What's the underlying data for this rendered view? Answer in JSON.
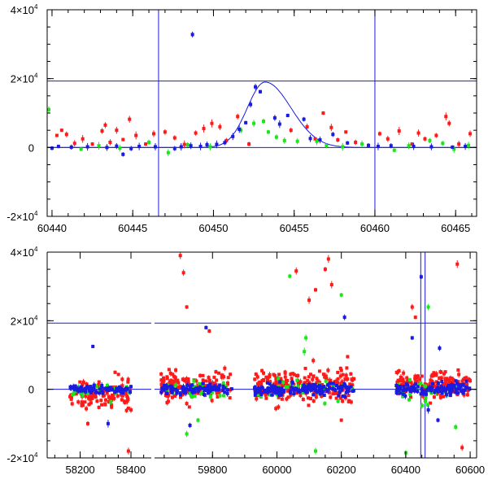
{
  "chart_data": [
    {
      "type": "scatter",
      "title": "",
      "xlabel": "",
      "ylabel": "",
      "xlim": [
        60439.7,
        60466.3
      ],
      "ylim": [
        -20000,
        40000
      ],
      "x_ticks": [
        {
          "value": 60440,
          "label": "60440"
        },
        {
          "value": 60445,
          "label": "60445"
        },
        {
          "value": 60450,
          "label": "60450"
        },
        {
          "value": 60455,
          "label": "60455"
        },
        {
          "value": 60460,
          "label": "60460"
        },
        {
          "value": 60465,
          "label": "60465"
        }
      ],
      "y_ticks": [
        {
          "value": 40000,
          "mant": "4×10",
          "exp": "4"
        },
        {
          "value": 20000,
          "mant": "2×10",
          "exp": "4"
        },
        {
          "value": 0,
          "mant": "0",
          "exp": ""
        },
        {
          "value": -20000,
          "mant": "-2×10",
          "exp": "4"
        }
      ],
      "hlines": [
        0,
        19300
      ],
      "vlines": [
        60446.6,
        60460.0
      ],
      "model_curve": {
        "baseline": 0,
        "peak": 19000,
        "t0": 60453.2,
        "sigma_left": 1.1,
        "sigma_right": 1.6
      },
      "series": [
        {
          "name": "red",
          "color": "#ff1a1a",
          "points": [
            [
              60440.3,
              3500
            ],
            [
              60440.6,
              5000
            ],
            [
              60440.9,
              3800
            ],
            [
              60441.4,
              1200
            ],
            [
              60441.9,
              2500
            ],
            [
              60442.5,
              1000
            ],
            [
              60443.1,
              4800
            ],
            [
              60443.3,
              6500
            ],
            [
              60443.6,
              1500
            ],
            [
              60444.0,
              5000
            ],
            [
              60444.4,
              2300
            ],
            [
              60444.8,
              8200
            ],
            [
              60445.2,
              3500
            ],
            [
              60445.8,
              1000
            ],
            [
              60446.3,
              4000
            ],
            [
              60447.0,
              4500
            ],
            [
              60447.6,
              2800
            ],
            [
              60448.2,
              900
            ],
            [
              60448.9,
              4200
            ],
            [
              60449.4,
              5500
            ],
            [
              60449.9,
              7000
            ],
            [
              60450.4,
              6000
            ],
            [
              60450.8,
              2000
            ],
            [
              60451.5,
              9000
            ],
            [
              60452.2,
              1000
            ],
            [
              60454.8,
              5000
            ],
            [
              60455.8,
              6000
            ],
            [
              60456.3,
              2500
            ],
            [
              60456.8,
              10000
            ],
            [
              60457.3,
              5800
            ],
            [
              60457.7,
              2200
            ],
            [
              60458.2,
              4500
            ],
            [
              60458.8,
              1500
            ],
            [
              60460.3,
              4000
            ],
            [
              60460.8,
              2500
            ],
            [
              60461.5,
              4800
            ],
            [
              60462.3,
              1000
            ],
            [
              60462.7,
              4200
            ],
            [
              60463.1,
              2500
            ],
            [
              60463.8,
              3500
            ],
            [
              60464.4,
              9000
            ],
            [
              60464.6,
              7000
            ],
            [
              60465.2,
              1000
            ],
            [
              60465.9,
              4000
            ]
          ]
        },
        {
          "name": "green",
          "color": "#1ae61a",
          "points": [
            [
              60439.8,
              11000
            ],
            [
              60441.8,
              -500
            ],
            [
              60442.9,
              500
            ],
            [
              60444.2,
              -200
            ],
            [
              60446.0,
              1500
            ],
            [
              60447.2,
              -1500
            ],
            [
              60448.4,
              800
            ],
            [
              60449.8,
              200
            ],
            [
              60451.7,
              5000
            ],
            [
              60452.5,
              7000
            ],
            [
              60453.1,
              7600
            ],
            [
              60453.4,
              4500
            ],
            [
              60453.9,
              3000
            ],
            [
              60454.4,
              2000
            ],
            [
              60455.2,
              1800
            ],
            [
              60456.4,
              1800
            ],
            [
              60457.0,
              500
            ],
            [
              60458.0,
              200
            ],
            [
              60459.2,
              1000
            ],
            [
              60461.2,
              -800
            ],
            [
              60462.1,
              500
            ],
            [
              60463.4,
              2000
            ],
            [
              60464.2,
              1200
            ],
            [
              60464.9,
              -500
            ],
            [
              60465.8,
              600
            ]
          ]
        },
        {
          "name": "blue",
          "color": "#1a1ae0",
          "points": [
            [
              60440.0,
              -200
            ],
            [
              60440.4,
              300
            ],
            [
              60441.2,
              100
            ],
            [
              60442.2,
              200
            ],
            [
              60443.4,
              0
            ],
            [
              60444.0,
              400
            ],
            [
              60444.4,
              -2000
            ],
            [
              60444.9,
              -300
            ],
            [
              60445.4,
              300
            ],
            [
              60446.4,
              200
            ],
            [
              60447.6,
              -300
            ],
            [
              60448.0,
              200
            ],
            [
              60448.6,
              500
            ],
            [
              60448.7,
              32800
            ],
            [
              60449.2,
              300
            ],
            [
              60449.6,
              800
            ],
            [
              60450.2,
              900
            ],
            [
              60450.7,
              1400
            ],
            [
              60451.2,
              3200
            ],
            [
              60451.6,
              5300
            ],
            [
              60452.0,
              7200
            ],
            [
              60452.3,
              12500
            ],
            [
              60452.6,
              17600
            ],
            [
              60452.9,
              16200
            ],
            [
              60453.8,
              8600
            ],
            [
              60454.1,
              6800
            ],
            [
              60454.6,
              9300
            ],
            [
              60455.6,
              8200
            ],
            [
              60456.0,
              2600
            ],
            [
              60456.6,
              2200
            ],
            [
              60457.4,
              3800
            ],
            [
              60458.3,
              1300
            ],
            [
              60459.6,
              600
            ],
            [
              60460.2,
              300
            ],
            [
              60461.0,
              500
            ],
            [
              60462.4,
              300
            ],
            [
              60463.5,
              200
            ],
            [
              60464.8,
              100
            ],
            [
              60465.6,
              300
            ]
          ]
        }
      ]
    },
    {
      "type": "scatter",
      "title": "",
      "xlabel": "",
      "ylabel": "",
      "broken_x_axis": true,
      "segments": [
        {
          "xlim": [
            58070,
            58480
          ],
          "ticks": [
            {
              "value": 58200,
              "label": "58200"
            },
            {
              "value": 58400,
              "label": "58400"
            }
          ]
        },
        {
          "xlim": [
            59620,
            60620
          ],
          "ticks": [
            {
              "value": 59800,
              "label": "59800"
            },
            {
              "value": 60000,
              "label": "60000"
            },
            {
              "value": 60200,
              "label": "60200"
            },
            {
              "value": 60400,
              "label": "60400"
            },
            {
              "value": 60600,
              "label": "60600"
            }
          ]
        }
      ],
      "ylim": [
        -20000,
        40000
      ],
      "y_ticks": [
        {
          "value": 40000,
          "mant": "4×10",
          "exp": "4"
        },
        {
          "value": 20000,
          "mant": "2×10",
          "exp": "4"
        },
        {
          "value": 0,
          "mant": "0",
          "exp": ""
        },
        {
          "value": -20000,
          "mant": "-2×10",
          "exp": "4"
        }
      ],
      "hlines": [
        0,
        19300
      ],
      "vlines": [
        60446.6,
        60460.0
      ],
      "observing_seasons": [
        {
          "xlo": 58160,
          "xhi": 58400,
          "n_red": 110,
          "n_green": 25,
          "n_blue": 75,
          "red_sd": 4200,
          "red_bias": -1500,
          "green_sd": 2500,
          "blue_sd": 1000
        },
        {
          "xlo": 59640,
          "xhi": 59860,
          "n_red": 140,
          "n_green": 30,
          "n_blue": 90,
          "red_sd": 3800,
          "red_bias": 1000,
          "green_sd": 2500,
          "blue_sd": 1200
        },
        {
          "xlo": 59930,
          "xhi": 60240,
          "n_red": 220,
          "n_green": 35,
          "n_blue": 160,
          "red_sd": 4500,
          "red_bias": 1200,
          "green_sd": 3000,
          "blue_sd": 1500
        },
        {
          "xlo": 60370,
          "xhi": 60600,
          "n_red": 160,
          "n_green": 30,
          "n_blue": 110,
          "red_sd": 3500,
          "red_bias": 1000,
          "green_sd": 3500,
          "blue_sd": 1500
        }
      ],
      "outliers": [
        {
          "color": "#ff1a1a",
          "x": 58390,
          "y": -18000
        },
        {
          "color": "#ff1a1a",
          "x": 58230,
          "y": -10000
        },
        {
          "color": "#ff1a1a",
          "x": 59700,
          "y": 39000
        },
        {
          "color": "#ff1a1a",
          "x": 59710,
          "y": 34000
        },
        {
          "color": "#ff1a1a",
          "x": 59720,
          "y": 24000
        },
        {
          "color": "#ff1a1a",
          "x": 59790,
          "y": 17000
        },
        {
          "color": "#ff1a1a",
          "x": 60160,
          "y": 38000
        },
        {
          "color": "#ff1a1a",
          "x": 60150,
          "y": 35000
        },
        {
          "color": "#ff1a1a",
          "x": 60170,
          "y": 30500
        },
        {
          "color": "#ff1a1a",
          "x": 60120,
          "y": 29000
        },
        {
          "color": "#ff1a1a",
          "x": 60060,
          "y": 34500
        },
        {
          "color": "#ff1a1a",
          "x": 60100,
          "y": 26000
        },
        {
          "color": "#ff1a1a",
          "x": 60200,
          "y": -9000
        },
        {
          "color": "#ff1a1a",
          "x": 60420,
          "y": 24000
        },
        {
          "color": "#ff1a1a",
          "x": 60430,
          "y": 21000
        },
        {
          "color": "#ff1a1a",
          "x": 60560,
          "y": 36500
        },
        {
          "color": "#ff1a1a",
          "x": 60575,
          "y": -17000
        },
        {
          "color": "#1ae61a",
          "x": 60040,
          "y": 33000
        },
        {
          "color": "#1ae61a",
          "x": 60200,
          "y": 27500
        },
        {
          "color": "#1ae61a",
          "x": 60090,
          "y": 15000
        },
        {
          "color": "#1ae61a",
          "x": 60120,
          "y": -18000
        },
        {
          "color": "#1ae61a",
          "x": 60400,
          "y": -18500
        },
        {
          "color": "#1ae61a",
          "x": 60555,
          "y": -11000
        },
        {
          "color": "#1ae61a",
          "x": 59720,
          "y": -13000
        },
        {
          "color": "#1ae61a",
          "x": 59755,
          "y": -9000
        },
        {
          "color": "#1ae61a",
          "x": 60470,
          "y": 24000
        },
        {
          "color": "#1ae61a",
          "x": 60085,
          "y": 11000
        },
        {
          "color": "#1a1ae0",
          "x": 58250,
          "y": 12500
        },
        {
          "color": "#1a1ae0",
          "x": 58310,
          "y": -10000
        },
        {
          "color": "#1a1ae0",
          "x": 59780,
          "y": 18000
        },
        {
          "color": "#1a1ae0",
          "x": 59730,
          "y": -10500
        },
        {
          "color": "#1a1ae0",
          "x": 60210,
          "y": 21000
        },
        {
          "color": "#1a1ae0",
          "x": 60420,
          "y": 15000
        },
        {
          "color": "#1a1ae0",
          "x": 60448,
          "y": 32800
        },
        {
          "color": "#1a1ae0",
          "x": 60470,
          "y": -6000
        },
        {
          "color": "#1a1ae0",
          "x": 60505,
          "y": 12000
        },
        {
          "color": "#1a1ae0",
          "x": 60500,
          "y": -9000
        }
      ]
    }
  ]
}
